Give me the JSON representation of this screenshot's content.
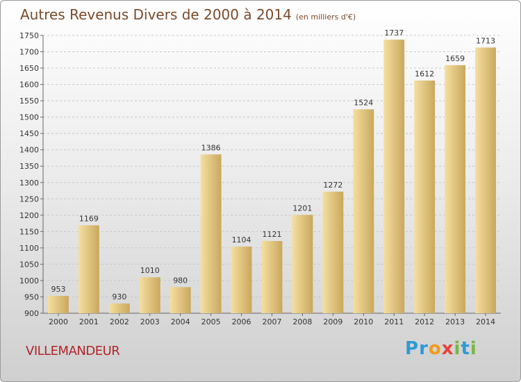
{
  "header": {
    "title": "Autres Revenus Divers de 2000 à 2014",
    "unit": "(en milliers d'€)"
  },
  "footer": {
    "city": "VILLEMANDEUR",
    "logo_letters": [
      "P",
      "r",
      "o",
      "x",
      "i",
      "t",
      "i"
    ],
    "logo_colors": [
      "#2e9ad6",
      "#2e9ad6",
      "#f29a1e",
      "#e8423a",
      "#77b843",
      "#2e9ad6",
      "#77b843"
    ]
  },
  "colors": {
    "bar_light": "#f5dfa0",
    "bar_dark": "#c9a85e",
    "title": "#7a4a2a",
    "city": "#b2242a"
  },
  "chart_data": {
    "type": "bar",
    "title": "Autres Revenus Divers de 2000 à 2014",
    "categories": [
      "2000",
      "2001",
      "2002",
      "2003",
      "2004",
      "2005",
      "2006",
      "2007",
      "2008",
      "2009",
      "2010",
      "2011",
      "2012",
      "2013",
      "2014"
    ],
    "values": [
      953,
      1169,
      930,
      1010,
      980,
      1386,
      1104,
      1121,
      1201,
      1272,
      1524,
      1737,
      1612,
      1659,
      1713
    ],
    "ylim": [
      900,
      1750
    ],
    "yticks": [
      900,
      950,
      1000,
      1050,
      1100,
      1150,
      1200,
      1250,
      1300,
      1350,
      1400,
      1450,
      1500,
      1550,
      1600,
      1650,
      1700,
      1750
    ],
    "grid": true
  }
}
